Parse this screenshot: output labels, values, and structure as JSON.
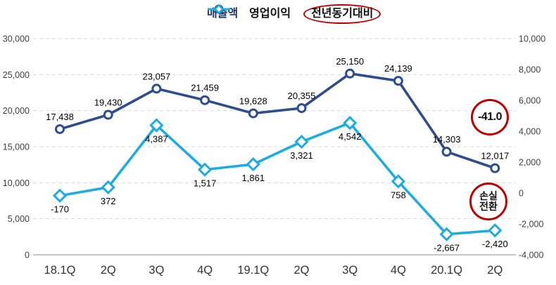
{
  "legend": {
    "revenue_label": "매출액",
    "profit_label": "영업이익",
    "yoy_label": "전년동기대비"
  },
  "annotations": {
    "yoy_change": "-41.0",
    "loss_line1": "손실",
    "loss_line2": "전환"
  },
  "colors": {
    "revenue": "#2E4D8F",
    "profit": "#1CACE3",
    "annotation_red": "#C00000",
    "legend_revenue_text": "#1F3864",
    "legend_profit_text": "#111111",
    "legend_yoy_text": "#111111",
    "gridline": "#D7D7D7",
    "baseline": "#A3A3A3",
    "tick_text": "#3F3F3F",
    "x_label_text": "#333333",
    "data_label_text": "#000000"
  },
  "chart_data": {
    "type": "line",
    "categories": [
      "18.1Q",
      "2Q",
      "3Q",
      "4Q",
      "19.1Q",
      "2Q",
      "3Q",
      "4Q",
      "20.1Q",
      "2Q"
    ],
    "series": [
      {
        "name": "매출액",
        "axis": "left",
        "marker": "circle",
        "color": "#2E4D8F",
        "values": [
          17438,
          19430,
          23057,
          21459,
          19628,
          20355,
          25150,
          24139,
          14303,
          12017
        ]
      },
      {
        "name": "영업이익",
        "axis": "right",
        "marker": "diamond",
        "color": "#1CACE3",
        "values": [
          -170,
          372,
          4387,
          1517,
          1861,
          3321,
          4542,
          758,
          -2667,
          -2420
        ]
      }
    ],
    "left_axis": {
      "min": 0,
      "max": 30000,
      "step": 5000,
      "ticks": [
        "30,000",
        "25,000",
        "20,000",
        "15,000",
        "10,000",
        "5,000",
        "0"
      ]
    },
    "right_axis": {
      "min": -4000,
      "max": 10000,
      "step": 2000,
      "ticks": [
        "10,000",
        "8,000",
        "6,000",
        "4,000",
        "2,000",
        "0",
        "-2,000",
        "-4,000"
      ]
    },
    "grid": "dashed-horizontal",
    "legend_position": "top-center"
  }
}
